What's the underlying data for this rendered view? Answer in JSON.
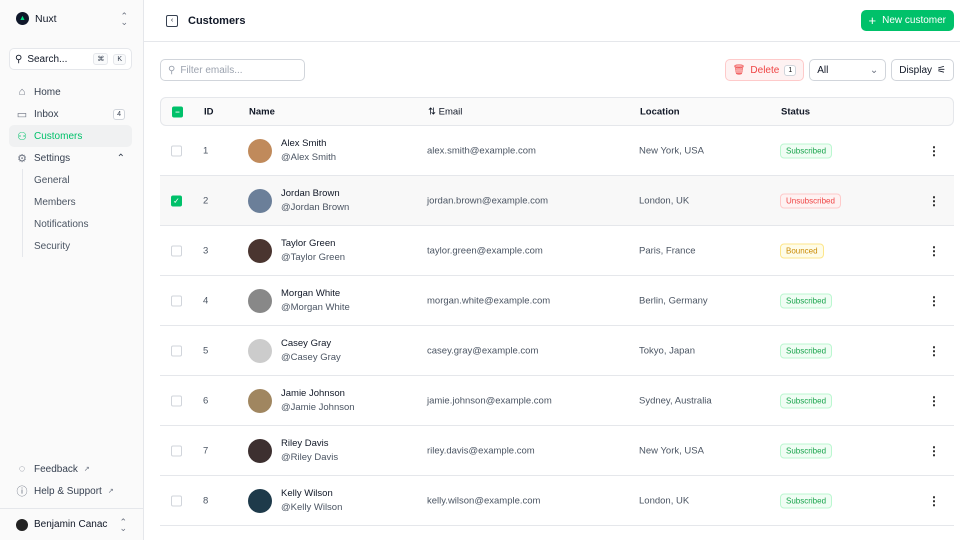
{
  "sidebar": {
    "team": "Nuxt",
    "search": "Search...",
    "kbd": [
      "⌘",
      "K"
    ],
    "items": [
      {
        "label": "Home",
        "icon": "home-icon"
      },
      {
        "label": "Inbox",
        "icon": "inbox-icon",
        "badge": "4"
      },
      {
        "label": "Customers",
        "icon": "users-icon",
        "active": true
      },
      {
        "label": "Settings",
        "icon": "gear-icon"
      }
    ],
    "settings": [
      "General",
      "Members",
      "Notifications",
      "Security"
    ],
    "footer": [
      {
        "label": "Feedback"
      },
      {
        "label": "Help & Support"
      }
    ],
    "user": "Benjamin Canac"
  },
  "header": {
    "title": "Customers",
    "new_button": "New customer"
  },
  "toolbar": {
    "filter_placeholder": "Filter emails...",
    "delete": "Delete",
    "delete_count": "1",
    "status_filter": "All",
    "display": "Display"
  },
  "table": {
    "columns": [
      "ID",
      "Name",
      "Email",
      "Location",
      "Status"
    ],
    "rows": [
      {
        "id": "1",
        "name": "Alex Smith",
        "handle": "@Alex Smith",
        "email": "alex.smith@example.com",
        "location": "New York, USA",
        "status": "Subscribed",
        "selected": false,
        "avatar": "#c08a5b"
      },
      {
        "id": "2",
        "name": "Jordan Brown",
        "handle": "@Jordan Brown",
        "email": "jordan.brown@example.com",
        "location": "London, UK",
        "status": "Unsubscribed",
        "selected": true,
        "avatar": "#6b7f99"
      },
      {
        "id": "3",
        "name": "Taylor Green",
        "handle": "@Taylor Green",
        "email": "taylor.green@example.com",
        "location": "Paris, France",
        "status": "Bounced",
        "selected": false,
        "avatar": "#4a3530"
      },
      {
        "id": "4",
        "name": "Morgan White",
        "handle": "@Morgan White",
        "email": "morgan.white@example.com",
        "location": "Berlin, Germany",
        "status": "Subscribed",
        "selected": false,
        "avatar": "#888"
      },
      {
        "id": "5",
        "name": "Casey Gray",
        "handle": "@Casey Gray",
        "email": "casey.gray@example.com",
        "location": "Tokyo, Japan",
        "status": "Subscribed",
        "selected": false,
        "avatar": "#ccc"
      },
      {
        "id": "6",
        "name": "Jamie Johnson",
        "handle": "@Jamie Johnson",
        "email": "jamie.johnson@example.com",
        "location": "Sydney, Australia",
        "status": "Subscribed",
        "selected": false,
        "avatar": "#a08660"
      },
      {
        "id": "7",
        "name": "Riley Davis",
        "handle": "@Riley Davis",
        "email": "riley.davis@example.com",
        "location": "New York, USA",
        "status": "Subscribed",
        "selected": false,
        "avatar": "#3d3030"
      },
      {
        "id": "8",
        "name": "Kelly Wilson",
        "handle": "@Kelly Wilson",
        "email": "kelly.wilson@example.com",
        "location": "London, UK",
        "status": "Subscribed",
        "selected": false,
        "avatar": "#1e3a4a"
      }
    ]
  },
  "colors": {
    "accent": "#00c16a",
    "danger": "#ef4444"
  }
}
